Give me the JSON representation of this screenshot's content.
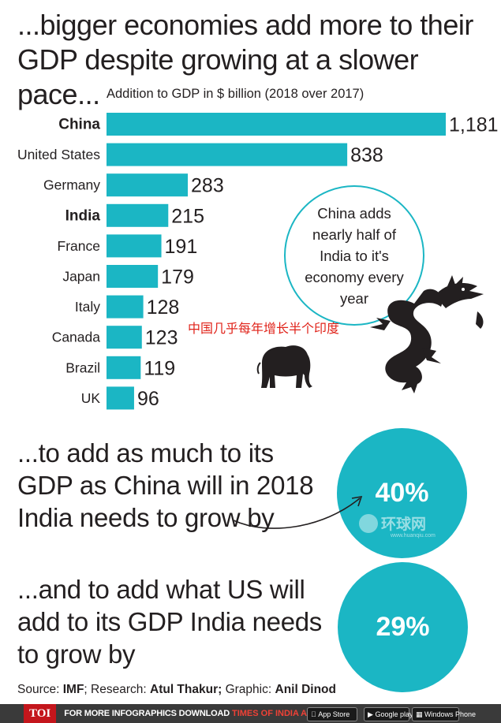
{
  "headline": "...bigger economies add more to their GDP despite growing at a slower pace...",
  "chart_data": {
    "type": "bar",
    "orientation": "horizontal",
    "title": "Addition to GDP in $ billion (2018 over 2017)",
    "categories": [
      "China",
      "United States",
      "Germany",
      "India",
      "France",
      "Japan",
      "Italy",
      "Canada",
      "Brazil",
      "UK"
    ],
    "values": [
      1181,
      838,
      283,
      215,
      191,
      179,
      128,
      123,
      119,
      96
    ],
    "value_labels": [
      "1,181",
      "838",
      "283",
      "215",
      "191",
      "179",
      "128",
      "123",
      "119",
      "96"
    ],
    "bold_categories": [
      "China",
      "India"
    ],
    "bar_color": "#1bb6c4",
    "xlim": [
      0,
      1181
    ],
    "grid": false
  },
  "callout": "China adds nearly half of India to it's economy every year",
  "chinese_caption": "中国几乎每年增长半个印度",
  "paragraph1": "...to add as much to its GDP as China will in 2018 India needs to grow by",
  "stat1": "40%",
  "paragraph2": "...and to add what US will add to its GDP India needs to grow by",
  "stat2": "29%",
  "watermark": {
    "name": "环球网",
    "url": "www.huanqiu.com"
  },
  "source": {
    "source_label": "Source:",
    "source_value": "IMF",
    "research_label": "; Research:",
    "research_value": "Atul Thakur;",
    "graphic_label": "Graphic:",
    "graphic_value": "Anil Dinod"
  },
  "footer": {
    "brand": "TOI",
    "message": "FOR MORE  INFOGRAPHICS DOWNLOAD",
    "app": "TIMES OF INDIA  APP",
    "store1": "App Store",
    "store2": "Google play",
    "store3": "Windows Phone"
  },
  "accent_color": "#1bb6c4"
}
